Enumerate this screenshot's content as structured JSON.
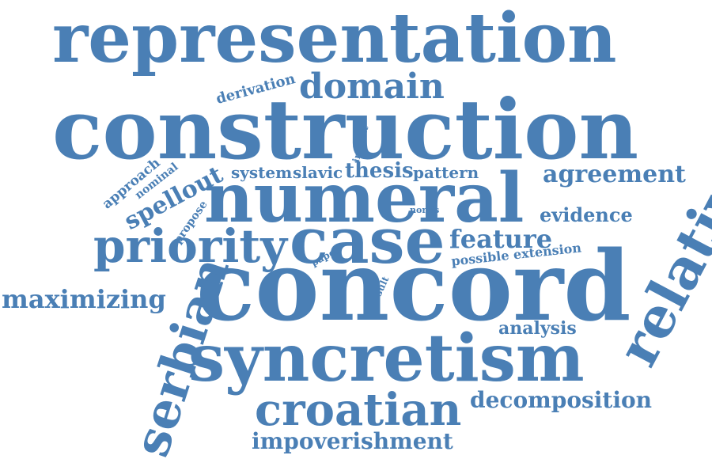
{
  "palette": {
    "word_color": "#4a7fb5",
    "background": "#ffffff"
  },
  "words": {
    "representation": "representation",
    "construction": "construction",
    "numeral": "numeral",
    "case": "case",
    "concord": "concord",
    "syncretism": "syncretism",
    "croatian": "croatian",
    "impoverishment": "impoverishment",
    "serbian": "serbian",
    "relative": "relative",
    "priority": "priority",
    "maximizing": "maximizing",
    "domain": "domain",
    "agreement": "agreement",
    "evidence": "evidence",
    "feature": "feature",
    "decomposition": "decomposition",
    "analysis": "analysis",
    "spellout": "spellout",
    "thesis": "thesis",
    "pattern": "pattern",
    "slavic": "slavic",
    "system": "system",
    "derivation": "derivation",
    "approach": "approach",
    "nominal": "nominal",
    "propose": "propose",
    "insight": "insight",
    "norris": "norris",
    "paper": "paper",
    "result": "result",
    "possible_extension": "possible extension"
  }
}
